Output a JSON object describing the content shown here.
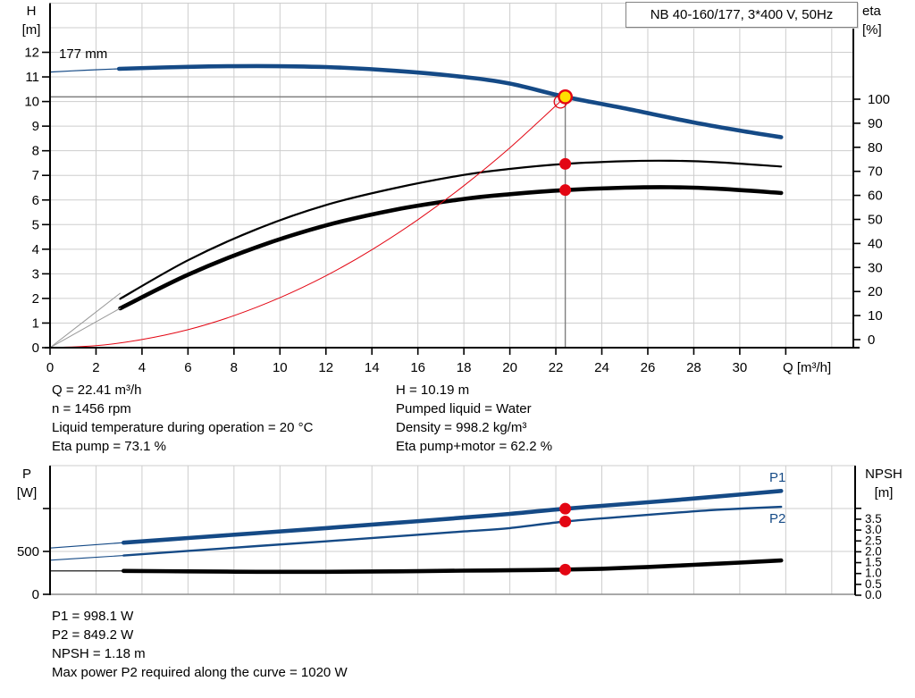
{
  "title_box": "NB 40-160/177, 3*400 V, 50Hz",
  "colors": {
    "blue": "#154a86",
    "red": "#e30613",
    "yellow": "#ffe000",
    "black": "#000000",
    "gray": "#7f7f7f",
    "hull": "#999999",
    "grid": "#cdcdcd",
    "axis": "#000000",
    "baseline": "#8c8c8c"
  },
  "chart_data": [
    {
      "id": "main",
      "type": "line",
      "title": "NB 40-160/177, 3*400 V, 50Hz",
      "curve_label": "177 mm",
      "x": {
        "label": "Q [m³/h]",
        "min": 0,
        "max": 35,
        "ticks": [
          0,
          2,
          4,
          6,
          8,
          10,
          12,
          14,
          16,
          18,
          20,
          22,
          24,
          26,
          28,
          30
        ]
      },
      "y_left": {
        "label_line1": "H",
        "label_line2": "[m]",
        "min": 0,
        "max": 14,
        "ticks": [
          0,
          1,
          2,
          3,
          4,
          5,
          6,
          7,
          8,
          9,
          10,
          11,
          12
        ]
      },
      "y_right": {
        "label_line1": "eta",
        "label_line2": "[%]",
        "min": 0,
        "max": 100,
        "ticks": [
          0,
          10,
          20,
          30,
          40,
          50,
          60,
          70,
          80,
          90,
          100
        ]
      },
      "series": [
        {
          "name": "pump-curve-177mm",
          "scale": "H",
          "color": "blue",
          "width": 4.6,
          "thin_until": 3,
          "thin_width": 1.2,
          "points": [
            [
              0,
              11.2
            ],
            [
              1.5,
              11.27
            ],
            [
              3,
              11.33
            ],
            [
              6,
              11.41
            ],
            [
              9,
              11.44
            ],
            [
              12,
              11.4
            ],
            [
              15,
              11.25
            ],
            [
              18,
              11.0
            ],
            [
              20,
              10.73
            ],
            [
              22.41,
              10.19
            ],
            [
              25,
              9.72
            ],
            [
              28,
              9.15
            ],
            [
              30,
              8.82
            ],
            [
              31.8,
              8.55
            ]
          ]
        },
        {
          "name": "eta-pump",
          "scale": "eta",
          "color": "black",
          "width": 2.2,
          "points": [
            [
              3.05,
              17
            ],
            [
              6,
              33
            ],
            [
              9,
              46
            ],
            [
              12,
              56
            ],
            [
              15,
              63
            ],
            [
              18,
              68.5
            ],
            [
              20,
              71
            ],
            [
              22.41,
              73.1
            ],
            [
              25,
              74.2
            ],
            [
              27,
              74.4
            ],
            [
              29,
              73.8
            ],
            [
              31.8,
              72
            ]
          ]
        },
        {
          "name": "eta-pump-motor",
          "scale": "eta",
          "color": "black",
          "width": 4.6,
          "points": [
            [
              3.05,
              13
            ],
            [
              6,
              27
            ],
            [
              9,
              38.5
            ],
            [
              12,
              47.5
            ],
            [
              15,
              54
            ],
            [
              18,
              58.5
            ],
            [
              20,
              60.5
            ],
            [
              22.41,
              62.2
            ],
            [
              25,
              63.2
            ],
            [
              27,
              63.4
            ],
            [
              29,
              62.8
            ],
            [
              31.8,
              61
            ]
          ]
        },
        {
          "name": "system-curve",
          "scale": "H",
          "color": "red",
          "width": 1,
          "points": [
            [
              0,
              0
            ],
            [
              2,
              0.08
            ],
            [
              4,
              0.33
            ],
            [
              6,
              0.73
            ],
            [
              8,
              1.3
            ],
            [
              10,
              2.03
            ],
            [
              12,
              2.92
            ],
            [
              14,
              3.98
            ],
            [
              16,
              5.2
            ],
            [
              18,
              6.58
            ],
            [
              20,
              8.12
            ],
            [
              22.41,
              10.19
            ]
          ]
        },
        {
          "name": "hull-line-upper",
          "scale": "H",
          "color": "hull",
          "width": 1,
          "points": [
            [
              0,
              0
            ],
            [
              3.05,
              2.21
            ]
          ]
        },
        {
          "name": "hull-line-lower",
          "scale": "H",
          "color": "hull",
          "width": 1,
          "points": [
            [
              0,
              0
            ],
            [
              3.05,
              1.6
            ]
          ]
        }
      ],
      "duty_point": {
        "q": 22.41,
        "h": 10.19
      },
      "system_end": {
        "q": 22.2,
        "h": 9.99
      },
      "dots": [
        {
          "q": 22.41,
          "v": 73.1,
          "scale": "eta"
        },
        {
          "q": 22.41,
          "v": 62.2,
          "scale": "eta"
        }
      ]
    },
    {
      "id": "lower",
      "type": "line",
      "x": {
        "label": "",
        "min": 0,
        "max": 35,
        "ticks": []
      },
      "y_left": {
        "label_line1": "P",
        "label_line2": "[W]",
        "min": 0,
        "max": 1500,
        "ticks": [
          {
            "v": 0,
            "label": "0"
          },
          {
            "v": 500,
            "label": "500"
          },
          {
            "v": 1000,
            "label": ""
          }
        ]
      },
      "y_right": {
        "label_line1": "NPSH",
        "label_line2": "[m]",
        "min": 0,
        "max": 4,
        "ticks": [
          {
            "v": 0,
            "label": "0.0"
          },
          {
            "v": 0.5,
            "label": "0.5"
          },
          {
            "v": 1,
            "label": "1.0"
          },
          {
            "v": 1.5,
            "label": "1.5"
          },
          {
            "v": 2,
            "label": "2.0"
          },
          {
            "v": 2.5,
            "label": "2.5"
          },
          {
            "v": 3,
            "label": "3.0"
          },
          {
            "v": 3.5,
            "label": "3.5"
          },
          {
            "v": 4,
            "label": ""
          }
        ]
      },
      "labels": {
        "p1": "P1",
        "p2": "P2"
      },
      "series": [
        {
          "name": "p1-curve",
          "scale": "P",
          "color": "blue",
          "width": 4.6,
          "thin_until": 3.2,
          "thin_width": 1.2,
          "points": [
            [
              0,
              540
            ],
            [
              3.2,
              602
            ],
            [
              6,
              656
            ],
            [
              9,
              714
            ],
            [
              12,
              772
            ],
            [
              15,
              832
            ],
            [
              18,
              895
            ],
            [
              20,
              938
            ],
            [
              22.41,
              998.1
            ],
            [
              25,
              1052
            ],
            [
              27,
              1095
            ],
            [
              29,
              1140
            ],
            [
              31.8,
              1205
            ]
          ]
        },
        {
          "name": "p2-curve",
          "scale": "P",
          "color": "blue",
          "width": 2.4,
          "thin_until": 3.2,
          "thin_width": 1.1,
          "points": [
            [
              0,
              398
            ],
            [
              3.2,
              452
            ],
            [
              6,
              506
            ],
            [
              9,
              562
            ],
            [
              12,
              618
            ],
            [
              15,
              675
            ],
            [
              18,
              733
            ],
            [
              20,
              772
            ],
            [
              22.41,
              849.2
            ],
            [
              25,
              905
            ],
            [
              27,
              947
            ],
            [
              29,
              985
            ],
            [
              31.8,
              1020
            ]
          ]
        },
        {
          "name": "npsh-curve",
          "scale": "N",
          "color": "black",
          "width": 4.6,
          "thin_until": 3.2,
          "thin_width": 1.2,
          "points": [
            [
              0,
              1.12
            ],
            [
              3.2,
              1.12
            ],
            [
              6,
              1.1
            ],
            [
              9,
              1.08
            ],
            [
              12,
              1.08
            ],
            [
              15,
              1.1
            ],
            [
              18,
              1.13
            ],
            [
              20,
              1.15
            ],
            [
              22.41,
              1.18
            ],
            [
              24,
              1.22
            ],
            [
              26,
              1.3
            ],
            [
              28,
              1.4
            ],
            [
              30,
              1.5
            ],
            [
              31.8,
              1.6
            ]
          ]
        }
      ],
      "dots": [
        {
          "q": 22.41,
          "v": 998.1,
          "scale": "P"
        },
        {
          "q": 22.41,
          "v": 849.2,
          "scale": "P"
        },
        {
          "q": 22.41,
          "v": 1.18,
          "scale": "N"
        }
      ]
    }
  ],
  "info_top": {
    "left": [
      "Q = 22.41 m³/h",
      "n = 1456 rpm",
      "Liquid temperature during operation = 20 °C",
      "Eta pump = 73.1 %"
    ],
    "right": [
      "H = 10.19 m",
      "Pumped liquid = Water",
      "Density = 998.2 kg/m³",
      "Eta pump+motor = 62.2 %"
    ]
  },
  "info_bottom": [
    "P1 = 998.1 W",
    "P2 = 849.2 W",
    "NPSH = 1.18 m",
    "Max power P2 required along the curve = 1020 W"
  ]
}
